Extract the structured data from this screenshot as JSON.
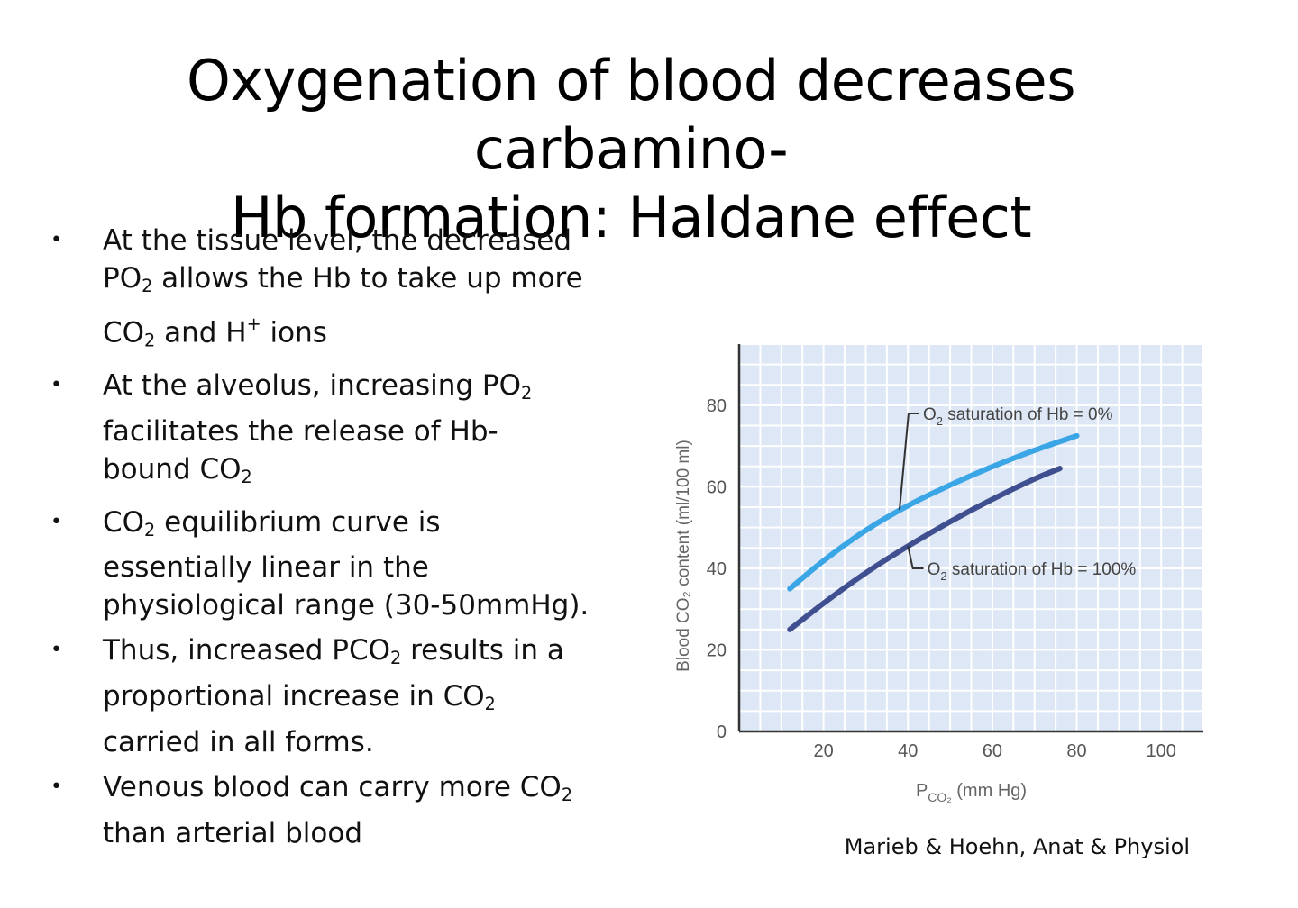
{
  "slide": {
    "title_line1": "Oxygenation of blood decreases carbamino-",
    "title_line2": "Hb formation: Haldane effect",
    "bullets": [
      {
        "parts": [
          {
            "t": "At the tissue level, the decreased"
          },
          {
            "br": true
          },
          {
            "t": "PO"
          },
          {
            "sub": "2"
          },
          {
            "t": " allows the Hb to take up more"
          },
          {
            "br": true
          },
          {
            "t": "CO"
          },
          {
            "sub": "2"
          },
          {
            "t": " and H"
          },
          {
            "sup": "+"
          },
          {
            "t": " ions"
          }
        ]
      },
      {
        "parts": [
          {
            "t": "At the alveolus, increasing PO"
          },
          {
            "sub": "2"
          },
          {
            "br": true
          },
          {
            "t": "facilitates the release of Hb-"
          },
          {
            "br": true
          },
          {
            "t": "bound CO"
          },
          {
            "sub": "2"
          }
        ]
      },
      {
        "parts": [
          {
            "t": "CO"
          },
          {
            "sub": "2"
          },
          {
            "t": " equilibrium curve is"
          },
          {
            "br": true
          },
          {
            "t": "essentially linear in the"
          },
          {
            "br": true
          },
          {
            "t": "physiological range (30-50mmHg)."
          }
        ]
      },
      {
        "parts": [
          {
            "t": "Thus, increased PCO"
          },
          {
            "sub": "2"
          },
          {
            "t": " results in a"
          },
          {
            "br": true
          },
          {
            "t": "proportional increase in CO"
          },
          {
            "sub": "2"
          },
          {
            "br": true
          },
          {
            "t": "carried in all forms."
          }
        ]
      },
      {
        "parts": [
          {
            "t": "Venous blood can carry  more CO"
          },
          {
            "sub": "2"
          },
          {
            "br": true
          },
          {
            "t": "than arterial blood"
          }
        ]
      }
    ],
    "bullet_char": "•",
    "caption": "Marieb & Hoehn, Anat & Physiol"
  },
  "chart_data": {
    "type": "line",
    "xlabel": "P",
    "xlabel_sub": "CO₂",
    "xlabel_unit": " (mm Hg)",
    "ylabel": "Blood CO₂ content (ml/100 ml)",
    "xlim": [
      0,
      110
    ],
    "ylim": [
      0,
      95
    ],
    "xticks": [
      20,
      40,
      60,
      80,
      100
    ],
    "yticks": [
      0,
      20,
      40,
      60,
      80
    ],
    "grid": true,
    "plot_bg": "#dde7f5",
    "grid_color": "#ffffff",
    "series": [
      {
        "label_prefix": "O",
        "label_sub": "2",
        "label_rest": " saturation of Hb = 0%",
        "color": "#3aa6e6",
        "x": [
          12,
          20,
          30,
          40,
          50,
          60,
          70,
          80
        ],
        "y": [
          35,
          42,
          49.5,
          55.5,
          60.5,
          65,
          69,
          72.5
        ]
      },
      {
        "label_prefix": "O",
        "label_sub": "2",
        "label_rest": " saturation of Hb = 100%",
        "color": "#3f4f8f",
        "x": [
          12,
          20,
          30,
          40,
          50,
          60,
          70,
          76
        ],
        "y": [
          25,
          31.5,
          39,
          45.5,
          51.5,
          57,
          62,
          64.5
        ]
      }
    ],
    "annotations": [
      {
        "series": 0,
        "point_x": 38,
        "label_x": 41,
        "label_y": 78
      },
      {
        "series": 1,
        "point_x": 40,
        "label_x": 42,
        "label_y": 40
      }
    ]
  }
}
